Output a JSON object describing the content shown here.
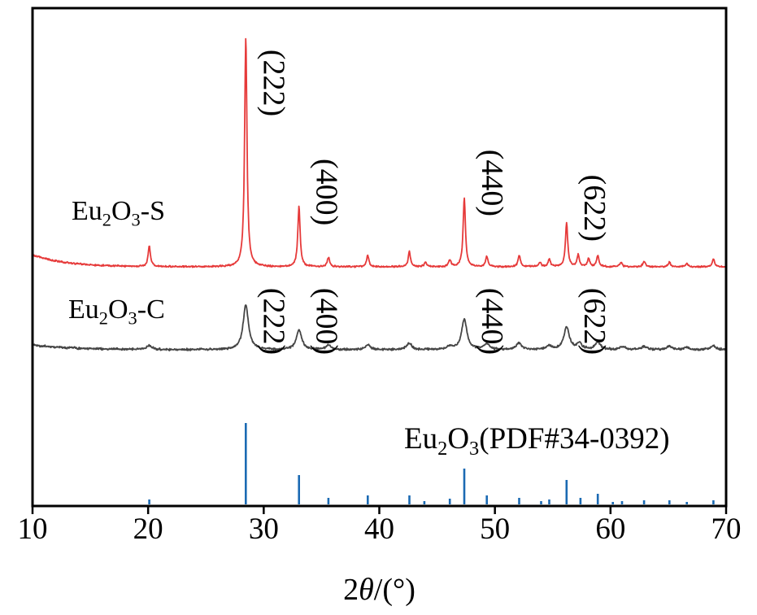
{
  "chart_data": {
    "type": "line",
    "title": "",
    "xlabel": "2θ/(°)",
    "ylabel": "",
    "xlim": [
      10,
      70
    ],
    "x_ticks": [
      10,
      20,
      30,
      40,
      50,
      60,
      70
    ],
    "grid": false,
    "background": "#ffffff",
    "series": [
      {
        "name": "Eu2O3-S",
        "color": "#e63a3a",
        "peaks": [
          [
            20.1,
            9
          ],
          [
            28.45,
            100
          ],
          [
            33.05,
            26
          ],
          [
            35.6,
            4
          ],
          [
            39.0,
            5
          ],
          [
            42.6,
            6.5
          ],
          [
            44.0,
            2
          ],
          [
            46.1,
            3
          ],
          [
            47.35,
            30
          ],
          [
            49.3,
            4.5
          ],
          [
            52.1,
            5
          ],
          [
            53.9,
            2
          ],
          [
            54.7,
            3.5
          ],
          [
            56.2,
            19
          ],
          [
            57.2,
            5
          ],
          [
            58.1,
            3.5
          ],
          [
            58.9,
            5
          ],
          [
            60.9,
            2
          ],
          [
            62.9,
            2.5
          ],
          [
            65.1,
            2
          ],
          [
            66.6,
            1.5
          ],
          [
            68.9,
            3.5
          ]
        ]
      },
      {
        "name": "Eu2O3-C",
        "color": "#454545",
        "peaks": [
          [
            20.1,
            8
          ],
          [
            28.45,
            100
          ],
          [
            33.05,
            45
          ],
          [
            35.6,
            9
          ],
          [
            39.0,
            11
          ],
          [
            42.6,
            14
          ],
          [
            46.1,
            7
          ],
          [
            47.35,
            68
          ],
          [
            49.3,
            13
          ],
          [
            52.1,
            15
          ],
          [
            54.7,
            9
          ],
          [
            56.2,
            50
          ],
          [
            57.3,
            14
          ],
          [
            58.9,
            17
          ],
          [
            61.0,
            7
          ],
          [
            62.9,
            7
          ],
          [
            65.1,
            7
          ],
          [
            66.6,
            5
          ],
          [
            68.9,
            9
          ]
        ]
      }
    ],
    "reference": {
      "name": "Eu2O3(PDF#34-0392)",
      "color": "#1b6ab3",
      "lines": [
        [
          20.1,
          6
        ],
        [
          28.45,
          100
        ],
        [
          33.05,
          36
        ],
        [
          35.6,
          8
        ],
        [
          39.0,
          11
        ],
        [
          42.6,
          11
        ],
        [
          43.9,
          4
        ],
        [
          46.1,
          7
        ],
        [
          47.35,
          44
        ],
        [
          49.3,
          11
        ],
        [
          52.1,
          8
        ],
        [
          54.0,
          4
        ],
        [
          54.7,
          6
        ],
        [
          56.2,
          30
        ],
        [
          57.4,
          8
        ],
        [
          58.9,
          13
        ],
        [
          60.2,
          3
        ],
        [
          61.0,
          4
        ],
        [
          62.9,
          5
        ],
        [
          65.1,
          5
        ],
        [
          66.6,
          3
        ],
        [
          68.9,
          5
        ]
      ]
    },
    "peak_labels": [
      {
        "hkl": "(222)",
        "two_theta": 28.45
      },
      {
        "hkl": "(400)",
        "two_theta": 33.05
      },
      {
        "hkl": "(440)",
        "two_theta": 47.35
      },
      {
        "hkl": "(622)",
        "two_theta": 56.2
      }
    ]
  }
}
